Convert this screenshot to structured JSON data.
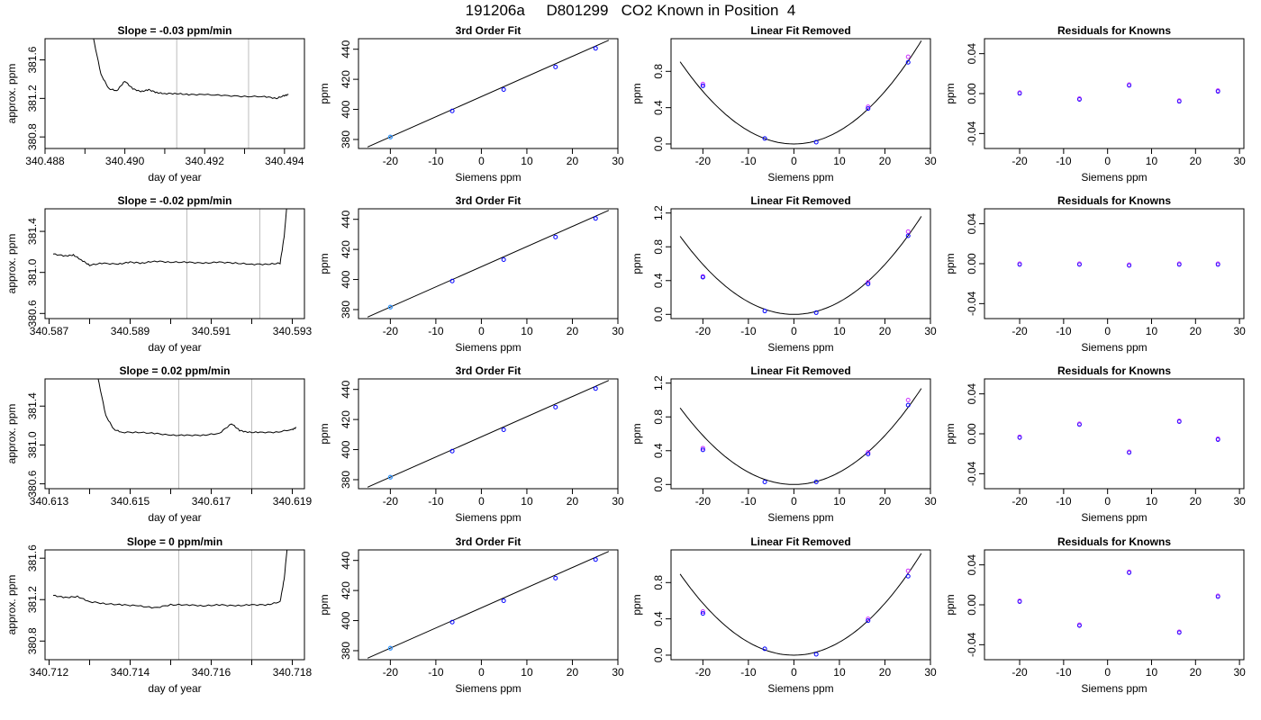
{
  "page_title": "191206a     D801299   CO2 Known in Position  4",
  "colors": {
    "frame": "#000000",
    "line": "#000000",
    "vline": "#bebebe",
    "pt_blue": "#0000ff",
    "pt_magenta": "#cc33ff",
    "pt_cyan": "#33aaff",
    "pt_red": "#ff0000"
  },
  "chart_data": [
    {
      "type": "line",
      "row": 1,
      "col": 1,
      "title": "Slope =  -0.03  ppm/min",
      "xlabel": "day of year",
      "ylabel": "approx. ppm",
      "xlim": [
        340.488,
        340.4945
      ],
      "ylim": [
        380.68,
        381.82
      ],
      "xticks": [
        340.488,
        340.49,
        340.492,
        340.494
      ],
      "xticklabels": [
        "340.488",
        "340.490",
        "340.492",
        "340.494"
      ],
      "yticks": [
        380.8,
        381.2,
        381.6
      ],
      "yticklabels": [
        "380.8",
        "381.2",
        "381.6"
      ],
      "vlines": [
        340.4913,
        340.4931
      ],
      "series": [
        {
          "x": [
            340.4892,
            340.4894,
            340.4896,
            340.4898,
            340.49,
            340.4902,
            340.4904,
            340.4906,
            340.4908,
            340.491,
            340.4913,
            340.4916,
            340.492,
            340.4925,
            340.493,
            340.4935,
            340.4938,
            340.494,
            340.4941
          ],
          "y": [
            381.85,
            381.45,
            381.3,
            381.28,
            381.38,
            381.3,
            381.27,
            381.29,
            381.26,
            381.25,
            381.25,
            381.24,
            381.24,
            381.23,
            381.22,
            381.22,
            381.2,
            381.23,
            381.24
          ]
        }
      ]
    },
    {
      "type": "scatter",
      "row": 1,
      "col": 2,
      "title": "3rd Order Fit",
      "xlabel": "Siemens ppm",
      "ylabel": "ppm",
      "xlim": [
        -27,
        30
      ],
      "ylim": [
        374,
        447
      ],
      "xticks": [
        -20,
        -10,
        0,
        10,
        20,
        30
      ],
      "xticklabels": [
        "-20",
        "-10",
        "0",
        "10",
        "20",
        "30"
      ],
      "yticks": [
        380,
        400,
        420,
        440
      ],
      "yticklabels": [
        "380",
        "400",
        "420",
        "440"
      ],
      "fit": {
        "x": [
          -25,
          28
        ],
        "y": [
          375,
          446
        ]
      },
      "points": {
        "x": [
          -20,
          -6.4,
          4.9,
          16.3,
          25.1
        ],
        "y": [
          381.6,
          399.0,
          413.2,
          428.2,
          440.6
        ]
      }
    },
    {
      "type": "scatter",
      "row": 1,
      "col": 3,
      "title": "Linear Fit Removed",
      "xlabel": "Siemens ppm",
      "ylabel": "ppm",
      "xlim": [
        -27,
        30
      ],
      "ylim": [
        -0.05,
        1.16
      ],
      "xticks": [
        -20,
        -10,
        0,
        10,
        20,
        30
      ],
      "xticklabels": [
        "-20",
        "-10",
        "0",
        "10",
        "20",
        "30"
      ],
      "yticks": [
        0,
        0.4,
        0.8
      ],
      "yticklabels": [
        "0.0",
        "0.4",
        "0.8"
      ],
      "curve": {
        "a": 0.00145,
        "xmin": -25,
        "xmax": 28
      },
      "points": {
        "x": [
          -20,
          -6.4,
          4.9,
          16.3,
          25.1
        ],
        "y": [
          0.64,
          0.06,
          0.02,
          0.39,
          0.9
        ]
      },
      "points_alt": {
        "x": [
          -20,
          16.3,
          25.1
        ],
        "y": [
          0.66,
          0.41,
          0.96
        ]
      }
    },
    {
      "type": "scatter",
      "row": 1,
      "col": 4,
      "title": "Residuals for Knowns",
      "xlabel": "Siemens ppm",
      "ylabel": "ppm",
      "xlim": [
        -28,
        31
      ],
      "ylim": [
        -0.055,
        0.055
      ],
      "xticks": [
        -20,
        -10,
        0,
        10,
        20,
        30
      ],
      "xticklabels": [
        "-20",
        "-10",
        "0",
        "10",
        "20",
        "30"
      ],
      "yticks": [
        -0.04,
        0,
        0.04
      ],
      "yticklabels": [
        "-0.04",
        "0.00",
        "0.04"
      ],
      "points": {
        "x": [
          -20,
          -6.4,
          4.9,
          16.3,
          25.1
        ],
        "y": [
          0.001,
          -0.005,
          0.009,
          -0.007,
          0.003
        ]
      }
    },
    {
      "type": "line",
      "row": 2,
      "col": 1,
      "title": "Slope =  -0.02  ppm/min",
      "xlabel": "day of year",
      "ylabel": "approx. ppm",
      "xlim": [
        340.5869,
        340.5933
      ],
      "ylim": [
        380.55,
        381.62
      ],
      "xticks": [
        340.587,
        340.589,
        340.591,
        340.593
      ],
      "xticklabels": [
        "340.587",
        "340.589",
        "340.591",
        "340.593"
      ],
      "yticks": [
        380.6,
        381.0,
        381.4
      ],
      "yticklabels": [
        "380.6",
        "381.0",
        "381.4"
      ],
      "vlines": [
        340.5904,
        340.5922
      ],
      "series": [
        {
          "x": [
            340.5871,
            340.5874,
            340.5876,
            340.5878,
            340.588,
            340.5883,
            340.5887,
            340.589,
            340.5893,
            340.5896,
            340.59,
            340.5904,
            340.5908,
            340.5912,
            340.5916,
            340.592,
            340.5924,
            340.5927,
            340.5928,
            340.5929
          ],
          "y": [
            381.18,
            381.16,
            381.17,
            381.12,
            381.07,
            381.09,
            381.08,
            381.1,
            381.09,
            381.11,
            381.1,
            381.1,
            381.09,
            381.1,
            381.09,
            381.08,
            381.08,
            381.09,
            381.35,
            381.8
          ]
        }
      ]
    },
    {
      "type": "scatter",
      "row": 2,
      "col": 2,
      "title": "3rd Order Fit",
      "xlabel": "Siemens ppm",
      "ylabel": "ppm",
      "xlim": [
        -27,
        30
      ],
      "ylim": [
        374,
        447
      ],
      "xticks": [
        -20,
        -10,
        0,
        10,
        20,
        30
      ],
      "xticklabels": [
        "-20",
        "-10",
        "0",
        "10",
        "20",
        "30"
      ],
      "yticks": [
        380,
        400,
        420,
        440
      ],
      "yticklabels": [
        "380",
        "400",
        "420",
        "440"
      ],
      "fit": {
        "x": [
          -25,
          28
        ],
        "y": [
          375,
          446
        ]
      },
      "points": {
        "x": [
          -20,
          -6.4,
          4.9,
          16.3,
          25.1
        ],
        "y": [
          381.6,
          399.0,
          413.2,
          428.2,
          440.6
        ]
      }
    },
    {
      "type": "scatter",
      "row": 2,
      "col": 3,
      "title": "Linear Fit Removed",
      "xlabel": "Siemens ppm",
      "ylabel": "ppm",
      "xlim": [
        -27,
        30
      ],
      "ylim": [
        -0.05,
        1.25
      ],
      "xticks": [
        -20,
        -10,
        0,
        10,
        20,
        30
      ],
      "xticklabels": [
        "-20",
        "-10",
        "0",
        "10",
        "20",
        "30"
      ],
      "yticks": [
        0,
        0.4,
        0.8,
        1.2
      ],
      "yticklabels": [
        "0.0",
        "0.4",
        "0.8",
        "1.2"
      ],
      "curve": {
        "a": 0.00148,
        "xmin": -25,
        "xmax": 28
      },
      "points": {
        "x": [
          -20,
          -6.4,
          4.9,
          16.3,
          25.1
        ],
        "y": [
          0.44,
          0.04,
          0.02,
          0.36,
          0.93
        ]
      },
      "points_alt": {
        "x": [
          -20,
          16.3,
          25.1
        ],
        "y": [
          0.45,
          0.38,
          0.98
        ]
      }
    },
    {
      "type": "scatter",
      "row": 2,
      "col": 4,
      "title": "Residuals for Knowns",
      "xlabel": "Siemens ppm",
      "ylabel": "ppm",
      "xlim": [
        -28,
        31
      ],
      "ylim": [
        -0.055,
        0.055
      ],
      "xticks": [
        -20,
        -10,
        0,
        10,
        20,
        30
      ],
      "xticklabels": [
        "-20",
        "-10",
        "0",
        "10",
        "20",
        "30"
      ],
      "yticks": [
        -0.04,
        0,
        0.04
      ],
      "yticklabels": [
        "-0.04",
        "0.00",
        "0.04"
      ],
      "points": {
        "x": [
          -20,
          -6.4,
          4.9,
          16.3,
          25.1
        ],
        "y": [
          0.0,
          0.0,
          -0.001,
          0.0,
          0.0
        ]
      }
    },
    {
      "type": "line",
      "row": 3,
      "col": 1,
      "title": "Slope =  0.02  ppm/min",
      "xlabel": "day of year",
      "ylabel": "approx. ppm",
      "xlim": [
        340.6129,
        340.6193
      ],
      "ylim": [
        380.55,
        381.68
      ],
      "xticks": [
        340.613,
        340.615,
        340.617,
        340.619
      ],
      "xticklabels": [
        "340.613",
        "340.615",
        "340.617",
        "340.619"
      ],
      "yticks": [
        380.6,
        381.0,
        381.4
      ],
      "yticklabels": [
        "380.6",
        "381.0",
        "381.4"
      ],
      "vlines": [
        340.6162,
        340.618
      ],
      "series": [
        {
          "x": [
            340.6142,
            340.6144,
            340.6146,
            340.6148,
            340.6152,
            340.6156,
            340.616,
            340.6164,
            340.6168,
            340.6172,
            340.6175,
            340.6177,
            340.6179,
            340.6182,
            340.6186,
            340.619,
            340.6191
          ],
          "y": [
            381.7,
            381.3,
            381.16,
            381.13,
            381.13,
            381.12,
            381.1,
            381.1,
            381.1,
            381.12,
            381.22,
            381.15,
            381.13,
            381.13,
            381.13,
            381.16,
            381.18
          ]
        }
      ]
    },
    {
      "type": "scatter",
      "row": 3,
      "col": 2,
      "title": "3rd Order Fit",
      "xlabel": "Siemens ppm",
      "ylabel": "ppm",
      "xlim": [
        -27,
        30
      ],
      "ylim": [
        374,
        447
      ],
      "xticks": [
        -20,
        -10,
        0,
        10,
        20,
        30
      ],
      "xticklabels": [
        "-20",
        "-10",
        "0",
        "10",
        "20",
        "30"
      ],
      "yticks": [
        380,
        400,
        420,
        440
      ],
      "yticklabels": [
        "380",
        "400",
        "420",
        "440"
      ],
      "fit": {
        "x": [
          -25,
          28
        ],
        "y": [
          375,
          446
        ]
      },
      "points": {
        "x": [
          -20,
          -6.4,
          4.9,
          16.3,
          25.1
        ],
        "y": [
          381.6,
          399.0,
          413.2,
          428.2,
          440.6
        ]
      }
    },
    {
      "type": "scatter",
      "row": 3,
      "col": 3,
      "title": "Linear Fit Removed",
      "xlabel": "Siemens ppm",
      "ylabel": "ppm",
      "xlim": [
        -27,
        30
      ],
      "ylim": [
        -0.05,
        1.25
      ],
      "xticks": [
        -20,
        -10,
        0,
        10,
        20,
        30
      ],
      "xticklabels": [
        "-20",
        "-10",
        "0",
        "10",
        "20",
        "30"
      ],
      "yticks": [
        0,
        0.4,
        0.8,
        1.2
      ],
      "yticklabels": [
        "0.0",
        "0.4",
        "0.8",
        "1.2"
      ],
      "curve": {
        "a": 0.00145,
        "xmin": -25,
        "xmax": 28
      },
      "points": {
        "x": [
          -20,
          -6.4,
          4.9,
          16.3,
          25.1
        ],
        "y": [
          0.41,
          0.03,
          0.03,
          0.36,
          0.94
        ]
      },
      "points_alt": {
        "x": [
          -20,
          16.3,
          25.1
        ],
        "y": [
          0.43,
          0.38,
          1.0
        ]
      }
    },
    {
      "type": "scatter",
      "row": 3,
      "col": 4,
      "title": "Residuals for Knowns",
      "xlabel": "Siemens ppm",
      "ylabel": "ppm",
      "xlim": [
        -28,
        31
      ],
      "ylim": [
        -0.055,
        0.055
      ],
      "xticks": [
        -20,
        -10,
        0,
        10,
        20,
        30
      ],
      "xticklabels": [
        "-20",
        "-10",
        "0",
        "10",
        "20",
        "30"
      ],
      "yticks": [
        -0.04,
        0,
        0.04
      ],
      "yticklabels": [
        "-0.04",
        "0.00",
        "0.04"
      ],
      "points": {
        "x": [
          -20,
          -6.4,
          4.9,
          16.3,
          25.1
        ],
        "y": [
          -0.003,
          0.01,
          -0.018,
          0.013,
          -0.005
        ]
      }
    },
    {
      "type": "line",
      "row": 4,
      "col": 1,
      "title": "Slope =  0  ppm/min",
      "xlabel": "day of year",
      "ylabel": "approx. ppm",
      "xlim": [
        340.7119,
        340.7183
      ],
      "ylim": [
        380.62,
        381.68
      ],
      "xticks": [
        340.712,
        340.714,
        340.716,
        340.718
      ],
      "xticklabels": [
        "340.712",
        "340.714",
        "340.716",
        "340.718"
      ],
      "yticks": [
        380.8,
        381.2,
        381.6
      ],
      "yticklabels": [
        "380.8",
        "381.2",
        "381.6"
      ],
      "vlines": [
        340.7152,
        340.717
      ],
      "series": [
        {
          "x": [
            340.7121,
            340.7124,
            340.7127,
            340.713,
            340.7134,
            340.7138,
            340.7142,
            340.7146,
            340.715,
            340.7154,
            340.7158,
            340.7162,
            340.7166,
            340.717,
            340.7174,
            340.7177,
            340.7178,
            340.7179
          ],
          "y": [
            381.24,
            381.22,
            381.23,
            381.18,
            381.16,
            381.15,
            381.14,
            381.12,
            381.15,
            381.15,
            381.14,
            381.15,
            381.14,
            381.15,
            381.15,
            381.18,
            381.4,
            381.8
          ]
        }
      ]
    },
    {
      "type": "scatter",
      "row": 4,
      "col": 2,
      "title": "3rd Order Fit",
      "xlabel": "Siemens ppm",
      "ylabel": "ppm",
      "xlim": [
        -27,
        30
      ],
      "ylim": [
        374,
        447
      ],
      "xticks": [
        -20,
        -10,
        0,
        10,
        20,
        30
      ],
      "xticklabels": [
        "-20",
        "-10",
        "0",
        "10",
        "20",
        "30"
      ],
      "yticks": [
        380,
        400,
        420,
        440
      ],
      "yticklabels": [
        "380",
        "400",
        "420",
        "440"
      ],
      "fit": {
        "x": [
          -25,
          28
        ],
        "y": [
          375,
          446
        ]
      },
      "points": {
        "x": [
          -20,
          -6.4,
          4.9,
          16.3,
          25.1
        ],
        "y": [
          381.6,
          399.0,
          413.2,
          428.2,
          440.6
        ]
      }
    },
    {
      "type": "scatter",
      "row": 4,
      "col": 3,
      "title": "Linear Fit Removed",
      "xlabel": "Siemens ppm",
      "ylabel": "ppm",
      "xlim": [
        -27,
        30
      ],
      "ylim": [
        -0.05,
        1.16
      ],
      "xticks": [
        -20,
        -10,
        0,
        10,
        20,
        30
      ],
      "xticklabels": [
        "-20",
        "-10",
        "0",
        "10",
        "20",
        "30"
      ],
      "yticks": [
        0,
        0.4,
        0.8
      ],
      "yticklabels": [
        "0.0",
        "0.4",
        "0.8"
      ],
      "curve": {
        "a": 0.00143,
        "xmin": -25,
        "xmax": 28
      },
      "points": {
        "x": [
          -20,
          -6.4,
          4.9,
          16.3,
          25.1
        ],
        "y": [
          0.46,
          0.07,
          0.01,
          0.38,
          0.87
        ]
      },
      "points_alt": {
        "x": [
          -20,
          16.3,
          25.1
        ],
        "y": [
          0.48,
          0.4,
          0.93
        ]
      }
    },
    {
      "type": "scatter",
      "row": 4,
      "col": 4,
      "title": "Residuals for Knowns",
      "xlabel": "Siemens ppm",
      "ylabel": "ppm",
      "xlim": [
        -28,
        31
      ],
      "ylim": [
        -0.055,
        0.055
      ],
      "xticks": [
        -20,
        -10,
        0,
        10,
        20,
        30
      ],
      "xticklabels": [
        "-20",
        "-10",
        "0",
        "10",
        "20",
        "30"
      ],
      "yticks": [
        -0.04,
        0,
        0.04
      ],
      "yticklabels": [
        "-0.04",
        "0.00",
        "0.04"
      ],
      "points": {
        "x": [
          -20,
          -6.4,
          4.9,
          16.3,
          25.1
        ],
        "y": [
          0.004,
          -0.02,
          0.033,
          -0.027,
          0.009
        ]
      }
    }
  ]
}
